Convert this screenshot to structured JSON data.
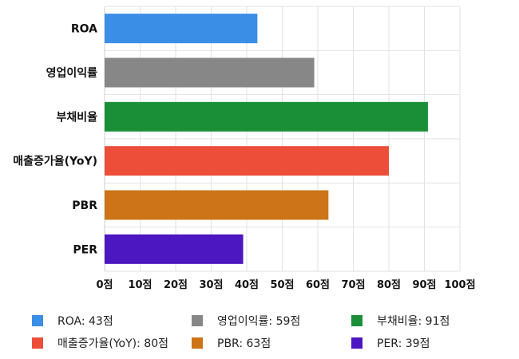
{
  "chart_data": {
    "type": "bar",
    "orientation": "horizontal",
    "categories": [
      "ROA",
      "영업이익률",
      "부채비율",
      "매출증가율(YoY)",
      "PBR",
      "PER"
    ],
    "values": [
      43,
      59,
      91,
      80,
      63,
      39
    ],
    "colors": [
      "#3a8ee6",
      "#878787",
      "#1a8f38",
      "#ec4e39",
      "#cc7417",
      "#4c16c0"
    ],
    "xlim": [
      0,
      100
    ],
    "xticks": [
      0,
      10,
      20,
      30,
      40,
      50,
      60,
      70,
      80,
      90,
      100
    ],
    "tick_suffix": "점",
    "grid": true,
    "legend_position": "bottom",
    "title": "",
    "xlabel": "",
    "ylabel": ""
  },
  "legend": [
    {
      "label": "ROA: 43점",
      "color": "#3a8ee6"
    },
    {
      "label": "영업이익률: 59점",
      "color": "#878787"
    },
    {
      "label": "부채비율: 91점",
      "color": "#1a8f38"
    },
    {
      "label": "매출증가율(YoY): 80점",
      "color": "#ec4e39"
    },
    {
      "label": "PBR: 63점",
      "color": "#cc7417"
    },
    {
      "label": "PER: 39점",
      "color": "#4c16c0"
    }
  ]
}
